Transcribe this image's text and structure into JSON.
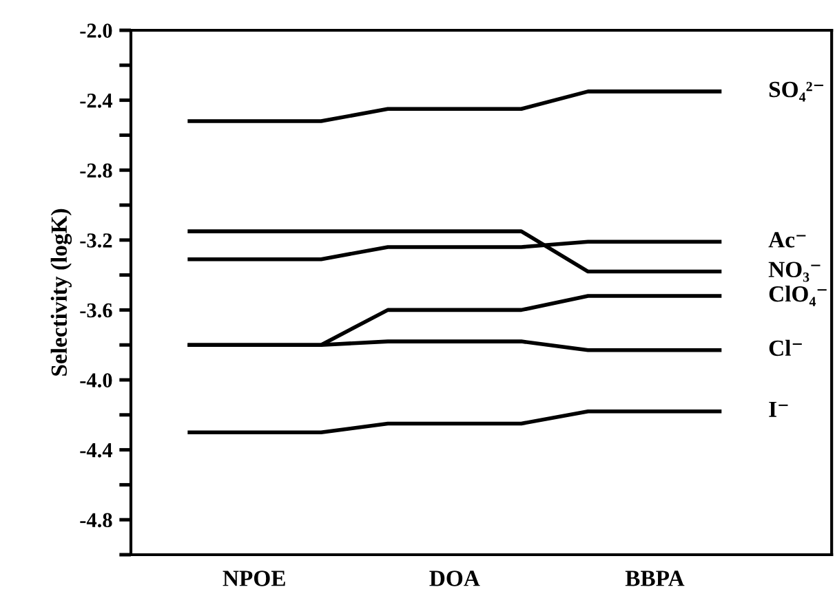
{
  "chart_data": {
    "type": "line",
    "ylabel": "Selectivity (logK)",
    "categories": [
      null,
      "NPOE",
      null,
      null,
      "DOA",
      null,
      null,
      "BBPA",
      null
    ],
    "series": [
      {
        "name": "SO₄²⁻",
        "color": "#000000",
        "values": [
          -2.52,
          -2.52,
          -2.52,
          -2.45,
          -2.45,
          -2.45,
          -2.35,
          -2.35,
          -2.35
        ]
      },
      {
        "name": "Ac⁻",
        "color": "#000000",
        "values": [
          -3.31,
          -3.31,
          -3.31,
          -3.24,
          -3.24,
          -3.24,
          -3.21,
          -3.21,
          -3.21
        ]
      },
      {
        "name": "NO₃⁻",
        "color": "#000000",
        "values": [
          -3.15,
          -3.15,
          -3.15,
          -3.15,
          -3.15,
          -3.15,
          -3.38,
          -3.38,
          -3.38
        ]
      },
      {
        "name": "ClO₄⁻",
        "color": "#000000",
        "values": [
          -3.8,
          -3.8,
          -3.8,
          -3.6,
          -3.6,
          -3.6,
          -3.52,
          -3.52,
          -3.52
        ]
      },
      {
        "name": "Cl⁻",
        "color": "#000000",
        "values": [
          -3.8,
          -3.8,
          -3.8,
          -3.78,
          -3.78,
          -3.78,
          -3.83,
          -3.83,
          -3.83
        ]
      },
      {
        "name": "I⁻",
        "color": "#000000",
        "values": [
          -4.3,
          -4.3,
          -4.3,
          -4.25,
          -4.25,
          -4.25,
          -4.18,
          -4.18,
          -4.18
        ]
      }
    ],
    "ylim": [
      -5.0,
      -2.0
    ],
    "yticks": [
      {
        "value": -2.0,
        "label": "-2.0"
      },
      {
        "value": -2.4,
        "label": "-2.4"
      },
      {
        "value": -2.8,
        "label": "-2.8"
      },
      {
        "value": -3.2,
        "label": "-3.2"
      },
      {
        "value": -3.6,
        "label": "-3.6"
      },
      {
        "value": -4.0,
        "label": "-4.0"
      },
      {
        "value": -4.4,
        "label": "-4.4"
      },
      {
        "value": -4.8,
        "label": "-4.8"
      }
    ],
    "grid": false,
    "legend": "right",
    "marker": "none",
    "line_style": "solid"
  }
}
